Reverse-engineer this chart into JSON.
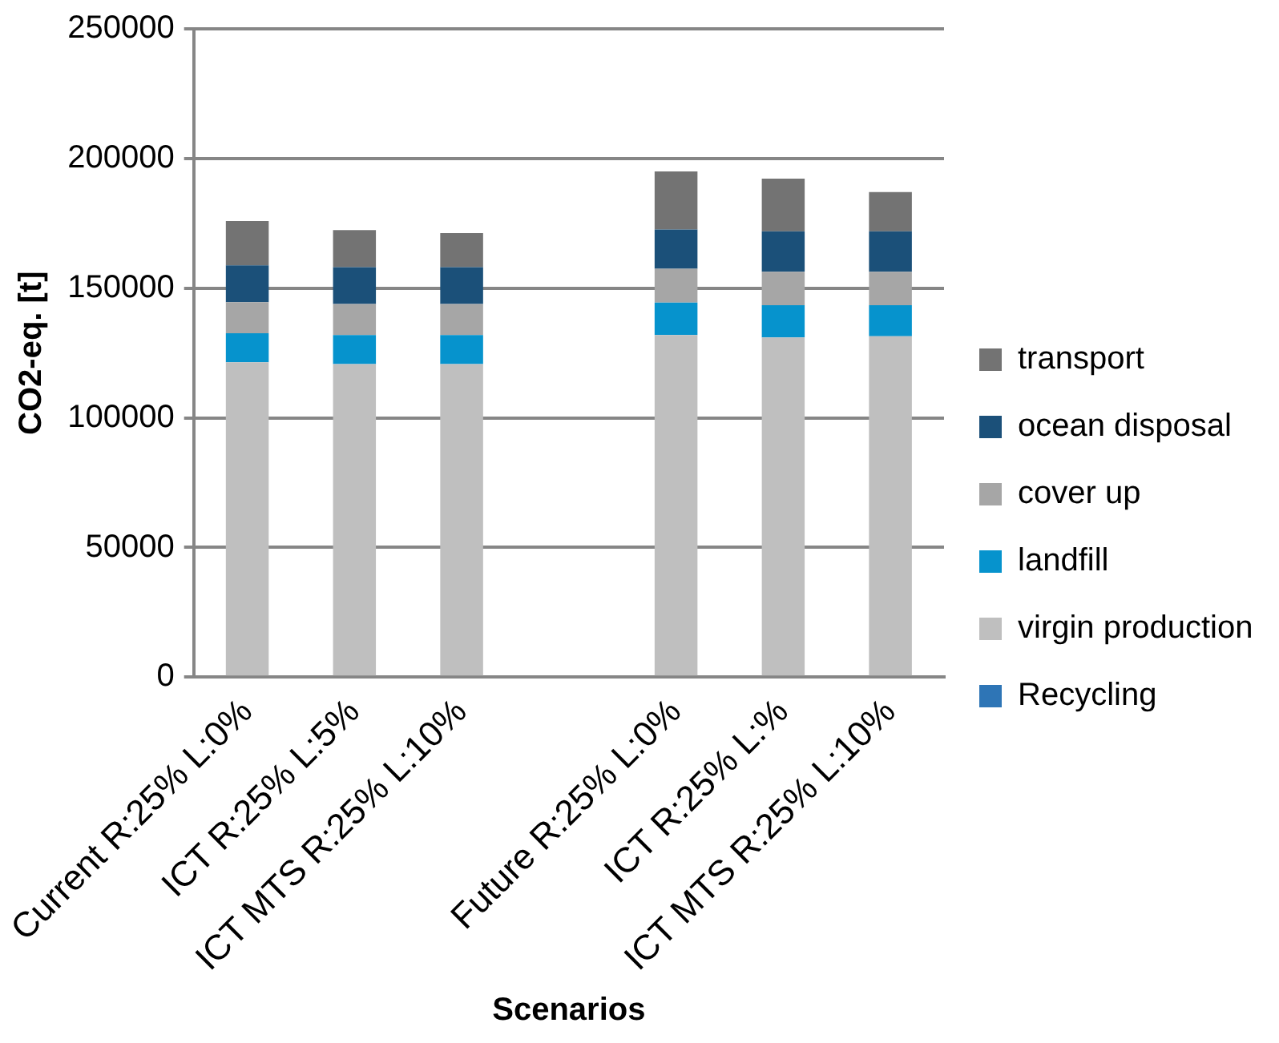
{
  "chart_data": {
    "type": "bar",
    "stacked": true,
    "xlabel": "Scenarios",
    "ylabel": "CO2-eq. [t]",
    "categories": [
      "Current R:25% L:0%",
      "ICT R:25% L:5%",
      "ICT MTS R:25% L:10%",
      null,
      "Future R:25% L:0%",
      "ICT R:25% L:%",
      "ICT MTS R:25% L:10%"
    ],
    "series": [
      {
        "name": "Recycling",
        "color": "#2e75b6",
        "values": [
          0,
          0,
          0,
          null,
          0,
          0,
          0
        ]
      },
      {
        "name": "virgin production",
        "color": "#bfbfbf",
        "values": [
          121400,
          120700,
          120700,
          null,
          131900,
          131000,
          131500
        ]
      },
      {
        "name": "landfill",
        "color": "#0693cd",
        "values": [
          11200,
          11200,
          11200,
          null,
          12500,
          12400,
          11900
        ]
      },
      {
        "name": "cover up",
        "color": "#a6a6a6",
        "values": [
          12000,
          12000,
          12000,
          null,
          13100,
          12900,
          12900
        ]
      },
      {
        "name": "ocean disposal",
        "color": "#1b5079",
        "values": [
          14200,
          14200,
          14200,
          null,
          15100,
          15600,
          15600
        ]
      },
      {
        "name": "transport",
        "color": "#737373",
        "values": [
          17100,
          14300,
          13100,
          null,
          22400,
          20300,
          15200
        ]
      }
    ],
    "ylim": [
      0,
      250000
    ],
    "yticks": [
      0,
      50000,
      100000,
      150000,
      200000,
      250000
    ],
    "grid": "y",
    "legend": "right"
  }
}
